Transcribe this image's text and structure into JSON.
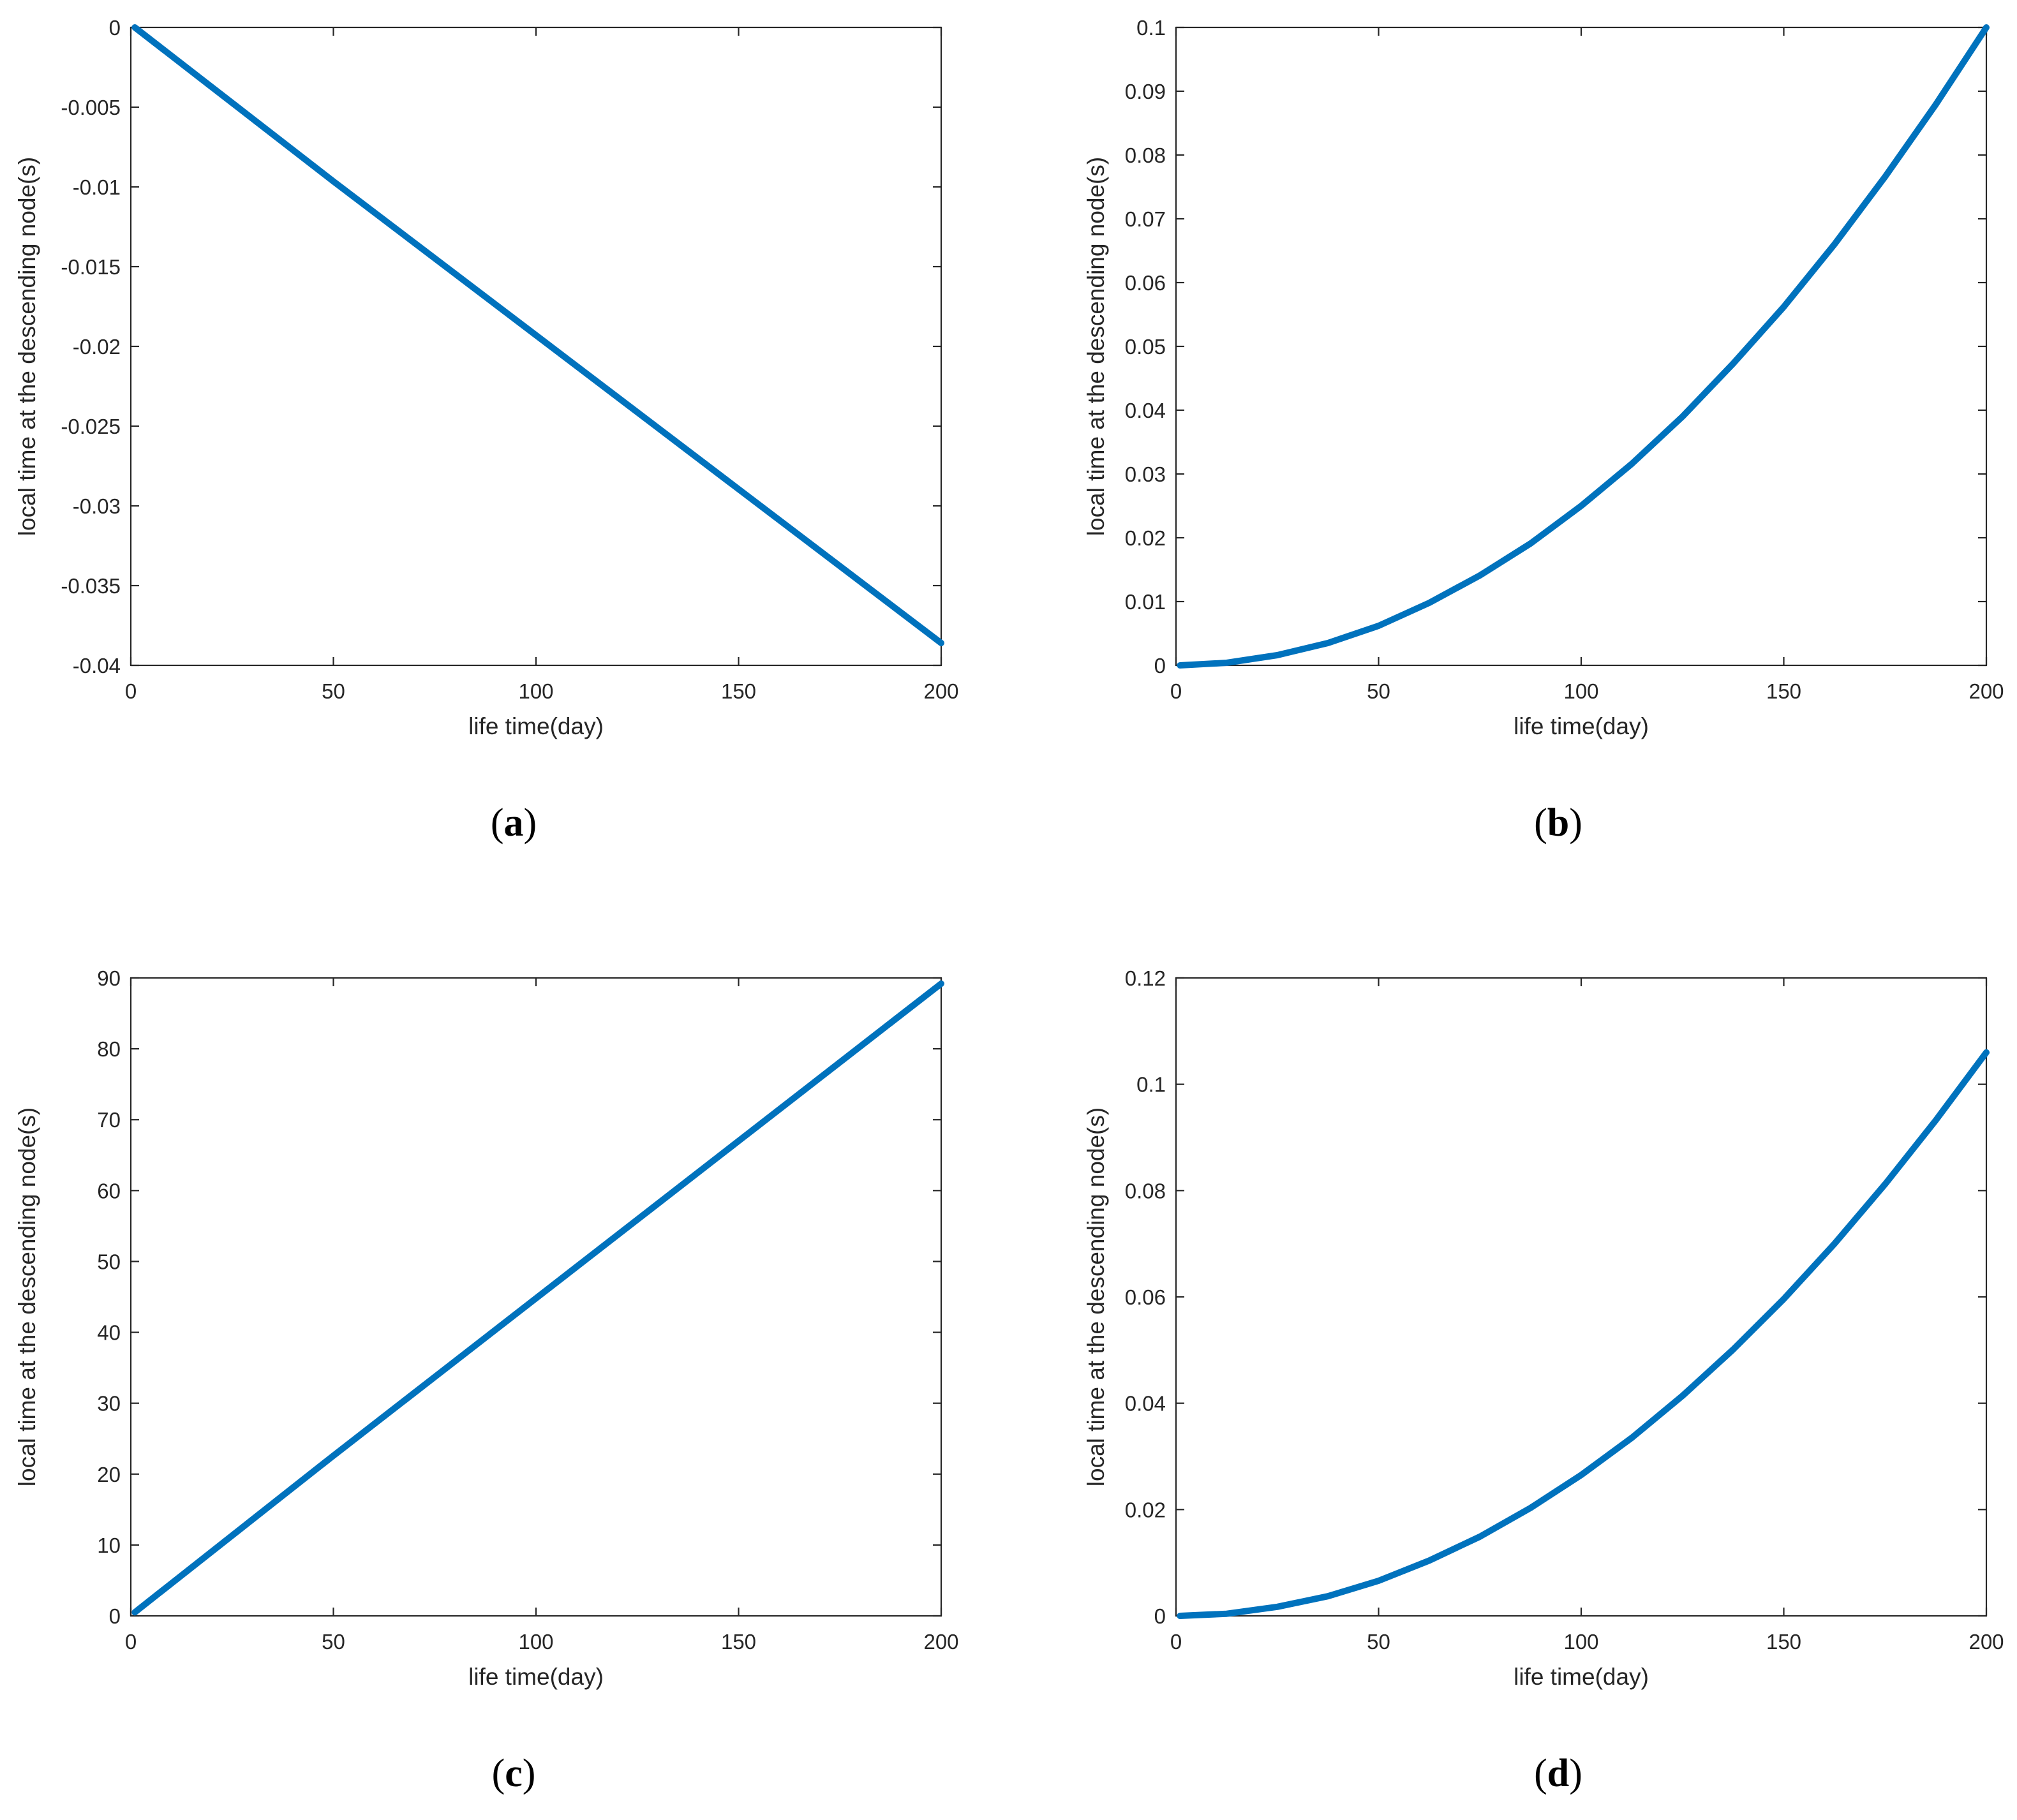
{
  "colors": {
    "series": "#0072BD",
    "axes": "#262626"
  },
  "chart_data": [
    {
      "panel": "(a)",
      "caption": {
        "open": "(",
        "letter": "a",
        "close": ")"
      },
      "type": "line",
      "xlabel": "life time(day)",
      "ylabel": "local time at the descending node(s)",
      "xlim": [
        0,
        200
      ],
      "ylim": [
        -0.04,
        0
      ],
      "xticks": [
        0,
        50,
        100,
        150,
        200
      ],
      "xtick_labels": [
        "0",
        "50",
        "100",
        "150",
        "200"
      ],
      "yticks": [
        0,
        -0.005,
        -0.01,
        -0.015,
        -0.02,
        -0.025,
        -0.03,
        -0.035,
        -0.04
      ],
      "ytick_labels": [
        "0",
        "-0.005",
        "-0.01",
        "-0.015",
        "-0.02",
        "-0.025",
        "-0.03",
        "-0.035",
        "-0.04"
      ],
      "grid": false,
      "series": [
        {
          "x": [
            1,
            50,
            100,
            150,
            200
          ],
          "y": [
            0,
            -0.00965,
            -0.0193,
            -0.02895,
            -0.0386
          ]
        }
      ]
    },
    {
      "panel": "(b)",
      "caption": {
        "open": "(",
        "letter": "b",
        "close": ")"
      },
      "type": "line",
      "xlabel": "life time(day)",
      "ylabel": "local time at the descending node(s)",
      "xlim": [
        0,
        200
      ],
      "ylim": [
        0,
        0.1
      ],
      "xticks": [
        0,
        50,
        100,
        150,
        200
      ],
      "xtick_labels": [
        "0",
        "50",
        "100",
        "150",
        "200"
      ],
      "yticks": [
        0,
        0.01,
        0.02,
        0.03,
        0.04,
        0.05,
        0.06,
        0.07,
        0.08,
        0.09,
        0.1
      ],
      "ytick_labels": [
        "0",
        "0.01",
        "0.02",
        "0.03",
        "0.04",
        "0.05",
        "0.06",
        "0.07",
        "0.08",
        "0.09",
        "0.1"
      ],
      "grid": false,
      "series": [
        {
          "x": [
            1,
            12.5,
            25,
            37.5,
            50,
            62.5,
            75,
            87.5,
            100,
            112.5,
            125,
            137.5,
            150,
            162.5,
            175,
            187.5,
            200
          ],
          "y": [
            0,
            0.0004,
            0.0016,
            0.0035,
            0.0062,
            0.0098,
            0.0141,
            0.0191,
            0.025,
            0.0316,
            0.039,
            0.0473,
            0.0562,
            0.066,
            0.0766,
            0.0879,
            0.1
          ]
        }
      ]
    },
    {
      "panel": "(c)",
      "caption": {
        "open": "(",
        "letter": "c",
        "close": ")"
      },
      "type": "line",
      "xlabel": "life time(day)",
      "ylabel": "local time at the descending node(s)",
      "xlim": [
        0,
        200
      ],
      "ylim": [
        0,
        90
      ],
      "xticks": [
        0,
        50,
        100,
        150,
        200
      ],
      "xtick_labels": [
        "0",
        "50",
        "100",
        "150",
        "200"
      ],
      "yticks": [
        0,
        10,
        20,
        30,
        40,
        50,
        60,
        70,
        80,
        90
      ],
      "ytick_labels": [
        "0",
        "10",
        "20",
        "30",
        "40",
        "50",
        "60",
        "70",
        "80",
        "90"
      ],
      "grid": false,
      "series": [
        {
          "x": [
            1,
            50,
            100,
            150,
            200
          ],
          "y": [
            0.5,
            22.6,
            44.8,
            67,
            89.2
          ]
        }
      ]
    },
    {
      "panel": "(d)",
      "caption": {
        "open": "(",
        "letter": "d",
        "close": ")"
      },
      "type": "line",
      "xlabel": "life time(day)",
      "ylabel": "local time at the descending node(s)",
      "xlim": [
        0,
        200
      ],
      "ylim": [
        0,
        0.12
      ],
      "xticks": [
        0,
        50,
        100,
        150,
        200
      ],
      "xtick_labels": [
        "0",
        "50",
        "100",
        "150",
        "200"
      ],
      "yticks": [
        0,
        0.02,
        0.04,
        0.06,
        0.08,
        0.1,
        0.12
      ],
      "ytick_labels": [
        "0",
        "0.02",
        "0.04",
        "0.06",
        "0.08",
        "0.1",
        "0.12"
      ],
      "grid": false,
      "series": [
        {
          "x": [
            1,
            12.5,
            25,
            37.5,
            50,
            62.5,
            75,
            87.5,
            100,
            112.5,
            125,
            137.5,
            150,
            162.5,
            175,
            187.5,
            200
          ],
          "y": [
            0,
            0.0004,
            0.0017,
            0.0037,
            0.0066,
            0.0104,
            0.0149,
            0.0203,
            0.0265,
            0.0335,
            0.0414,
            0.0501,
            0.0596,
            0.07,
            0.0812,
            0.0932,
            0.106
          ]
        }
      ]
    }
  ]
}
